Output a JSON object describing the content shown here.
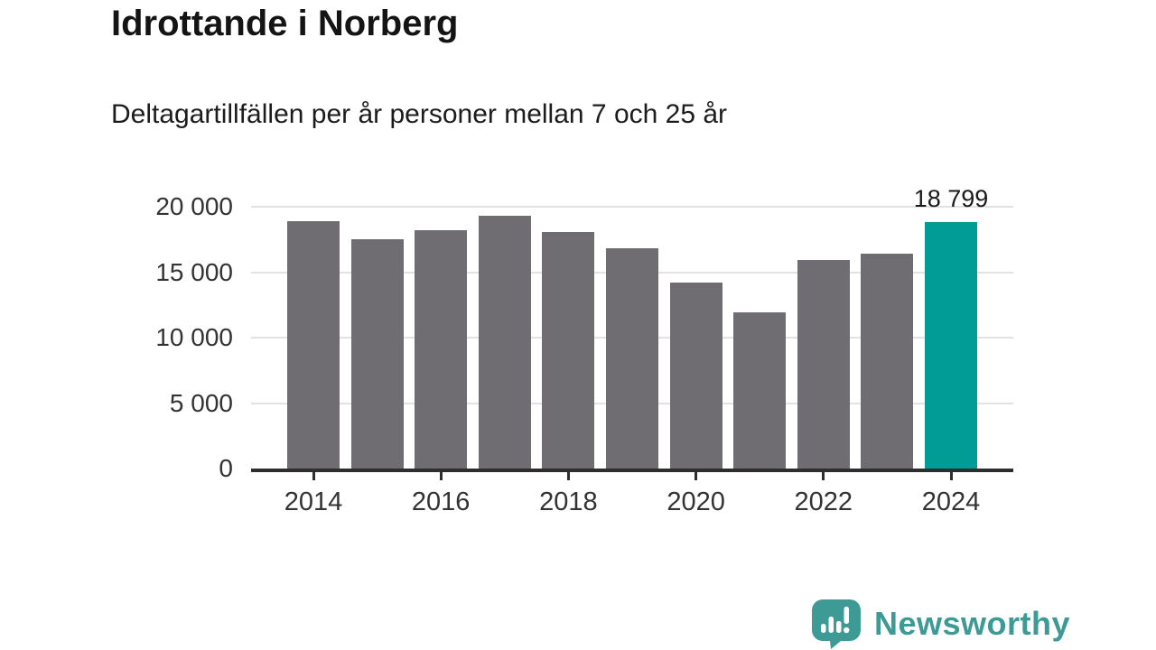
{
  "header": {
    "title": "Idrottande i Norberg",
    "subtitle": "Deltagartillfällen per år personer mellan 7 och 25 år"
  },
  "chart_data": {
    "type": "bar",
    "title": "Idrottande i Norberg",
    "subtitle": "Deltagartillfällen per år personer mellan 7 och 25 år",
    "categories": [
      "2014",
      "2015",
      "2016",
      "2017",
      "2018",
      "2019",
      "2020",
      "2021",
      "2022",
      "2023",
      "2024"
    ],
    "values": [
      18900,
      17500,
      18200,
      19300,
      18100,
      16800,
      14200,
      11900,
      15900,
      16400,
      18799
    ],
    "highlight": {
      "category": "2024",
      "index": 10,
      "data_label": "18 799"
    },
    "ylim": [
      0,
      20000
    ],
    "y_ticks": [
      {
        "value": 20000,
        "label": "20 000"
      },
      {
        "value": 15000,
        "label": "15 000"
      },
      {
        "value": 10000,
        "label": "10 000"
      },
      {
        "value": 5000,
        "label": "5 000"
      },
      {
        "value": 0,
        "label": "0"
      }
    ],
    "x_ticks": [
      "2014",
      "2016",
      "2018",
      "2020",
      "2022",
      "2024"
    ],
    "grid": "horizontal",
    "legend": "none",
    "colors": {
      "bar": "#6F6C72",
      "highlight": "#009C95",
      "grid": "#E2E2E2",
      "axis": "#2E2E2E",
      "axis_tick_label": "#333333",
      "value_label": "#1A1A1A"
    }
  },
  "footer": {
    "brand": "Newsworthy",
    "logo_color": "#3D9A94"
  }
}
